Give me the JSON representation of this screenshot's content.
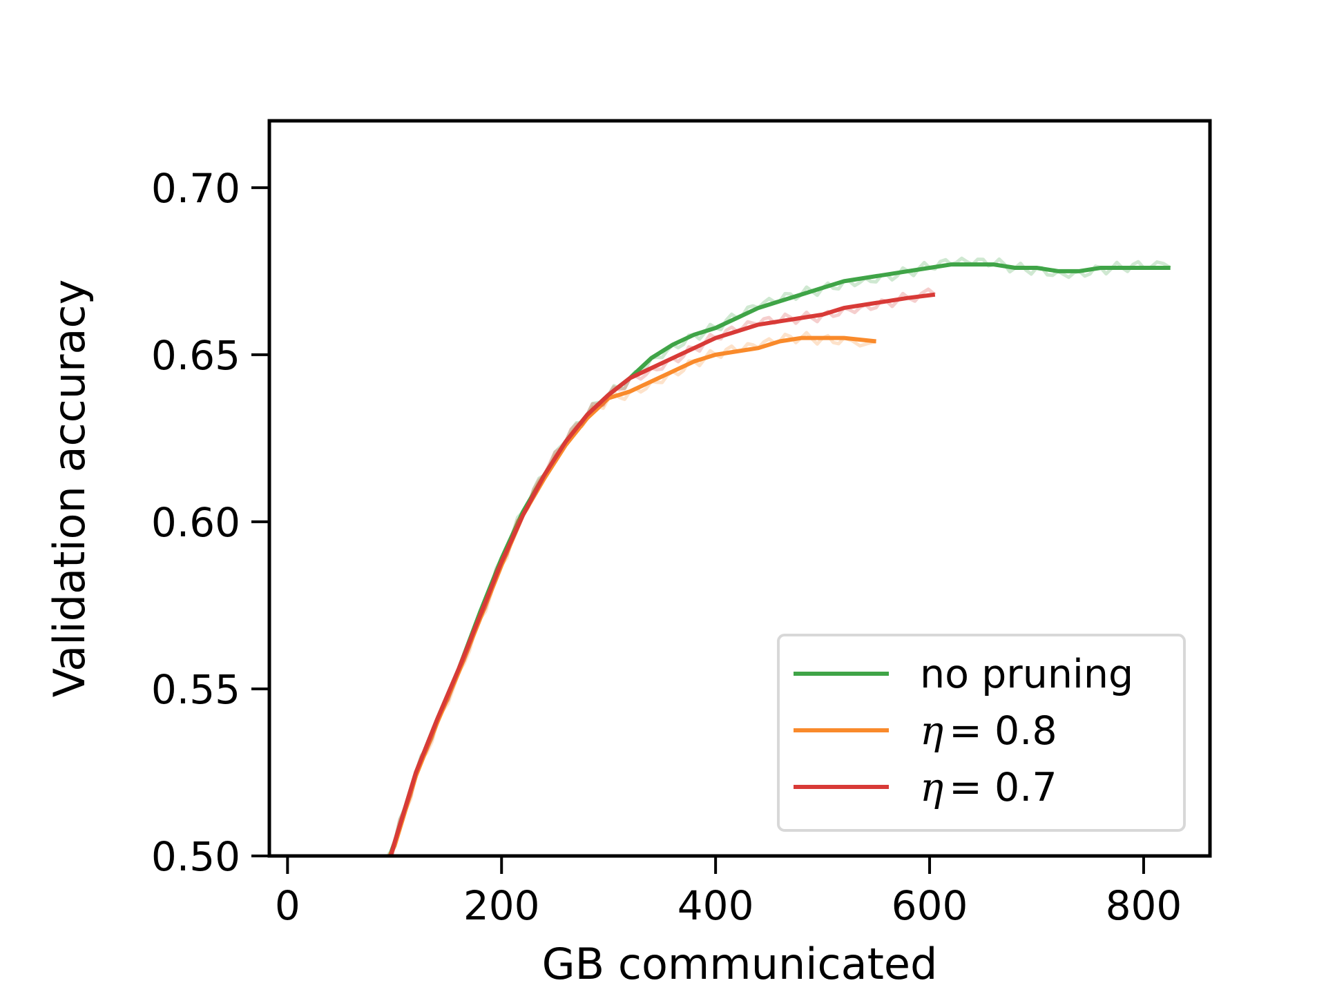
{
  "chart_data": {
    "type": "line",
    "xlabel": "GB communicated",
    "ylabel": "Validation accuracy",
    "xlim": [
      -17,
      862
    ],
    "ylim": [
      0.5,
      0.72
    ],
    "xticks": [
      0,
      200,
      400,
      600,
      800
    ],
    "xtick_labels": [
      "0",
      "200",
      "400",
      "600",
      "800"
    ],
    "yticks": [
      0.5,
      0.55,
      0.6,
      0.65,
      0.7
    ],
    "ytick_labels": [
      "0.50",
      "0.55",
      "0.60",
      "0.65",
      "0.70"
    ],
    "grid": false,
    "legend_position": "lower right",
    "series": [
      {
        "name": "no pruning",
        "color": "#3fa447",
        "x": [
          90,
          100,
          120,
          140,
          160,
          180,
          200,
          220,
          240,
          260,
          280,
          300,
          320,
          340,
          360,
          380,
          400,
          420,
          440,
          460,
          480,
          500,
          520,
          540,
          560,
          580,
          600,
          620,
          640,
          660,
          680,
          700,
          720,
          740,
          760,
          780,
          800,
          825
        ],
        "y": [
          0.495,
          0.504,
          0.525,
          0.541,
          0.556,
          0.573,
          0.589,
          0.603,
          0.614,
          0.624,
          0.632,
          0.638,
          0.643,
          0.649,
          0.653,
          0.656,
          0.658,
          0.661,
          0.664,
          0.666,
          0.668,
          0.67,
          0.672,
          0.673,
          0.674,
          0.675,
          0.676,
          0.677,
          0.677,
          0.677,
          0.676,
          0.676,
          0.675,
          0.675,
          0.676,
          0.676,
          0.676,
          0.676
        ]
      },
      {
        "name": "η = 0.8",
        "legend_prefix": "η",
        "legend_suffix": "= 0.8",
        "color": "#f98a2b",
        "x": [
          88,
          100,
          120,
          140,
          160,
          180,
          200,
          220,
          240,
          260,
          280,
          300,
          320,
          340,
          360,
          380,
          400,
          420,
          440,
          460,
          480,
          500,
          520,
          550
        ],
        "y": [
          0.495,
          0.503,
          0.524,
          0.54,
          0.555,
          0.571,
          0.587,
          0.602,
          0.613,
          0.623,
          0.631,
          0.637,
          0.639,
          0.642,
          0.645,
          0.648,
          0.65,
          0.651,
          0.652,
          0.654,
          0.655,
          0.655,
          0.655,
          0.654
        ]
      },
      {
        "name": "η = 0.7",
        "legend_prefix": "η",
        "legend_suffix": "= 0.7",
        "color": "#d83a37",
        "x": [
          92,
          100,
          120,
          140,
          160,
          180,
          200,
          220,
          240,
          260,
          280,
          300,
          320,
          340,
          360,
          380,
          400,
          420,
          440,
          460,
          480,
          500,
          520,
          540,
          560,
          580,
          605
        ],
        "y": [
          0.495,
          0.504,
          0.525,
          0.541,
          0.556,
          0.572,
          0.588,
          0.602,
          0.614,
          0.624,
          0.632,
          0.638,
          0.643,
          0.646,
          0.649,
          0.652,
          0.655,
          0.657,
          0.659,
          0.66,
          0.661,
          0.662,
          0.664,
          0.665,
          0.666,
          0.667,
          0.668
        ]
      }
    ]
  }
}
